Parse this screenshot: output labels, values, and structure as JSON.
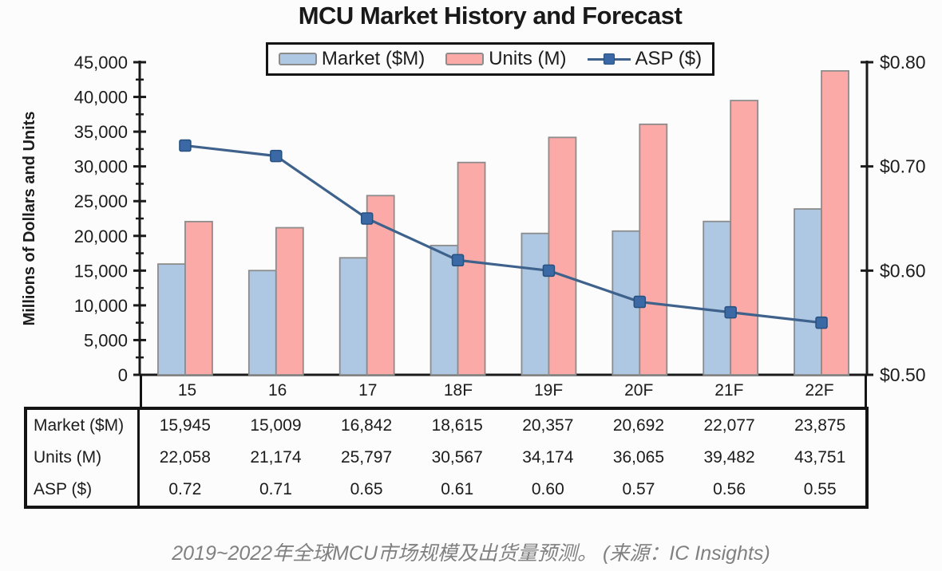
{
  "title": "MCU Market History and Forecast",
  "caption": "2019~2022年全球MCU市场规模及出货量预测。  (来源：IC Insights)",
  "chart_data": {
    "type": "bar",
    "subtype": "grouped bars with overlaid line, dual y-axes, attached data table",
    "categories": [
      "15",
      "16",
      "17",
      "18F",
      "19F",
      "20F",
      "21F",
      "22F"
    ],
    "series": [
      {
        "key": "market",
        "name": "Market ($M)",
        "type": "bar",
        "axis": "left",
        "values": [
          15945,
          15009,
          16842,
          18615,
          20357,
          20692,
          22077,
          23875
        ],
        "color": "#aec7e3",
        "border_color": "#8c8c8c"
      },
      {
        "key": "units",
        "name": "Units (M)",
        "type": "bar",
        "axis": "left",
        "values": [
          22058,
          21174,
          25797,
          30567,
          34174,
          36065,
          39482,
          43751
        ],
        "color": "#fbaaa7",
        "border_color": "#8c8c8c"
      },
      {
        "key": "asp",
        "name": "ASP ($)",
        "type": "line",
        "axis": "right",
        "values": [
          0.72,
          0.71,
          0.65,
          0.61,
          0.6,
          0.57,
          0.56,
          0.55
        ],
        "color": "#3e628c",
        "marker_color": "#3a69a5",
        "marker_border": "#27507e"
      }
    ],
    "left_axis": {
      "title": "Millions of Dollars and Units",
      "min": 0,
      "max": 45000,
      "major_step": 5000,
      "minor_step": 2500,
      "tick_labels": [
        "0",
        "5,000",
        "10,000",
        "15,000",
        "20,000",
        "25,000",
        "30,000",
        "35,000",
        "40,000",
        "45,000"
      ]
    },
    "right_axis": {
      "min": 0.5,
      "max": 0.8,
      "major_step": 0.1,
      "tick_labels": [
        "$0.50",
        "$0.60",
        "$0.70",
        "$0.80"
      ]
    },
    "grid": false,
    "legend_position": "top-center"
  },
  "table": {
    "rows": [
      {
        "key": "market",
        "label": "Market ($M)",
        "values": [
          "15,945",
          "15,009",
          "16,842",
          "18,615",
          "20,357",
          "20,692",
          "22,077",
          "23,875"
        ]
      },
      {
        "key": "units",
        "label": "Units (M)",
        "values": [
          "22,058",
          "21,174",
          "25,797",
          "30,567",
          "34,174",
          "36,065",
          "39,482",
          "43,751"
        ]
      },
      {
        "key": "asp",
        "label": "ASP ($)",
        "values": [
          "0.72",
          "0.71",
          "0.65",
          "0.61",
          "0.60",
          "0.57",
          "0.56",
          "0.55"
        ]
      }
    ]
  }
}
